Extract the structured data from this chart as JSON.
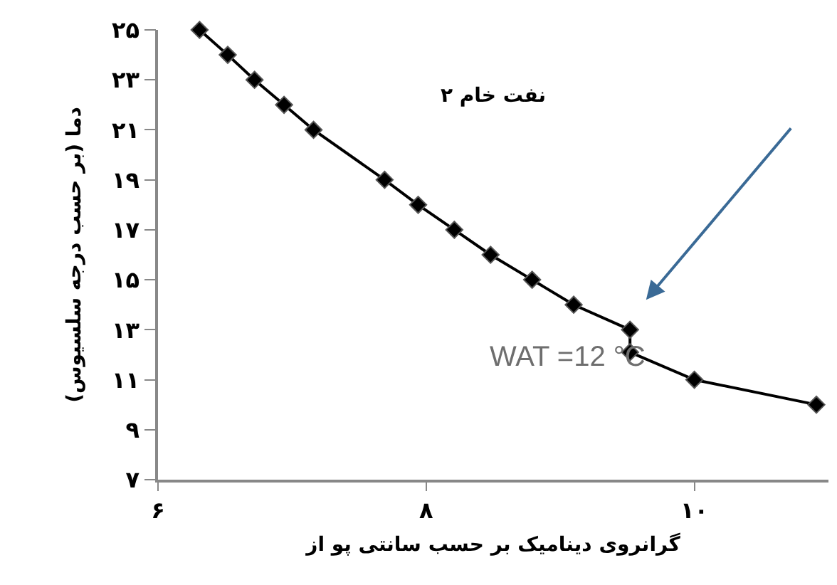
{
  "chart_data": {
    "type": "line",
    "title": "نفت خام ۲",
    "xlabel": "گرانروی دینامیک بر حسب سانتی پو از",
    "ylabel": "دما (بر حسب درجه سلسیوس)",
    "x": [
      6.31,
      6.52,
      6.72,
      6.94,
      7.16,
      7.69,
      7.94,
      8.21,
      8.48,
      8.79,
      9.1,
      9.52,
      9.52,
      10.0,
      10.91
    ],
    "series": [
      {
        "color": "#000000",
        "values": [
          25,
          24,
          23,
          22,
          21,
          19,
          18,
          17,
          16,
          15,
          14,
          13,
          12.1,
          11,
          10
        ]
      }
    ],
    "xlim": [
      6,
      11
    ],
    "ylim": [
      7,
      25
    ],
    "xticks": [
      {
        "value": 6,
        "label": "۶"
      },
      {
        "value": 8,
        "label": "۸"
      },
      {
        "value": 10,
        "label": "۱۰"
      }
    ],
    "yticks": [
      {
        "value": 7,
        "label": "۷"
      },
      {
        "value": 9,
        "label": "۹"
      },
      {
        "value": 11,
        "label": "۱۱"
      },
      {
        "value": 13,
        "label": "۱۳"
      },
      {
        "value": 15,
        "label": "۱۵"
      },
      {
        "value": 17,
        "label": "۱۷"
      },
      {
        "value": 19,
        "label": "۱۹"
      },
      {
        "value": 21,
        "label": "۲۱"
      },
      {
        "value": 23,
        "label": "۲۳"
      },
      {
        "value": 25,
        "label": "۲۵"
      }
    ],
    "annotations": [
      "WAT =12 °C"
    ],
    "grid": false,
    "legend": false,
    "marker": "diamond",
    "line_style": "solid"
  }
}
